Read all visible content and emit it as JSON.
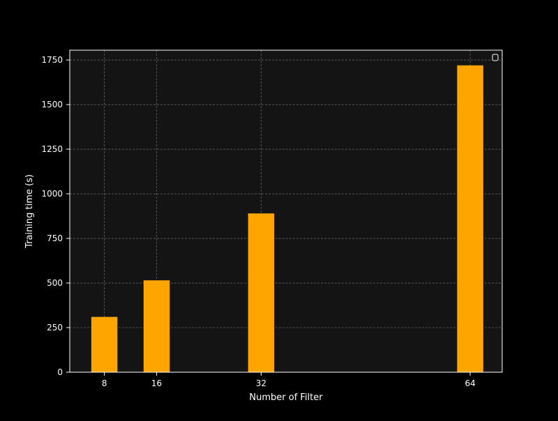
{
  "colors": {
    "background": "#000000",
    "plot_background": "#141414",
    "bar": "#ffa500",
    "grid": "#808080",
    "text": "#ffffff"
  },
  "chart_data": {
    "type": "bar",
    "title": "",
    "xlabel": "Number of Filter",
    "ylabel": "Training time (s)",
    "x": [
      8,
      16,
      32,
      64
    ],
    "x_tick_labels": [
      "8",
      "16",
      "32",
      "64"
    ],
    "values": [
      310,
      515,
      890,
      1720
    ],
    "bar_width": 4,
    "xlim": [
      2.7,
      68.9
    ],
    "ylim": [
      0,
      1805
    ],
    "yticks": [
      0,
      250,
      500,
      750,
      1000,
      1250,
      1500,
      1750
    ],
    "y_tick_labels": [
      "0",
      "250",
      "500",
      "750",
      "1000",
      "1250",
      "1500",
      "1750"
    ],
    "grid": true,
    "grid_style": "dashed",
    "legend": {
      "position": "top-right",
      "entries": []
    }
  }
}
